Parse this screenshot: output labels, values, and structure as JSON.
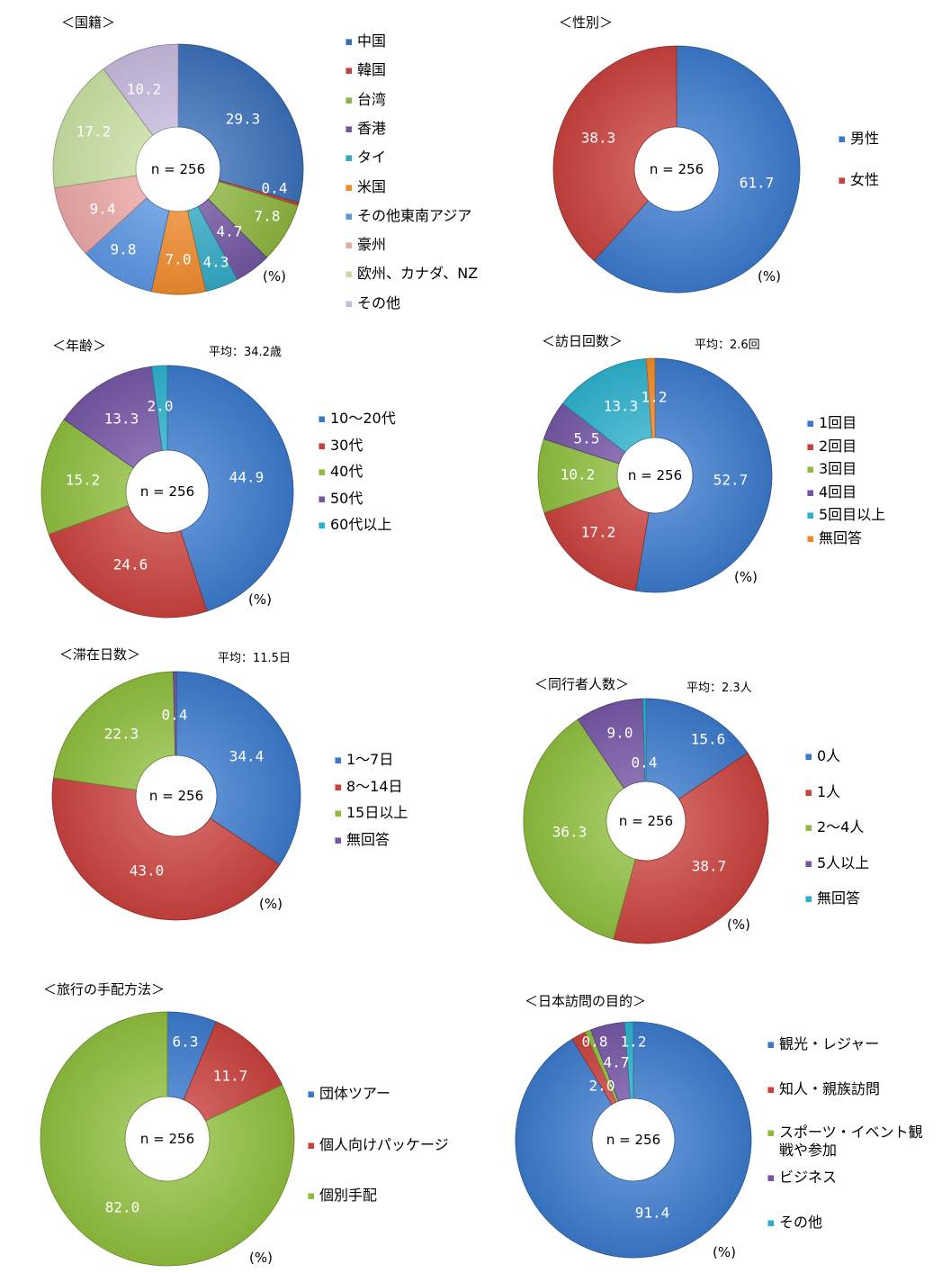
{
  "percent_unit": "(%)",
  "chart_data": [
    {
      "type": "pie",
      "title": "＜国籍＞",
      "subtitle": "",
      "center_label": "n = 256",
      "categories": [
        "中国",
        "韓国",
        "台湾",
        "香港",
        "タイ",
        "米国",
        "その他東南アジア",
        "豪州",
        "欧州、カナダ、NZ",
        "その他"
      ],
      "values": [
        29.3,
        0.4,
        7.8,
        4.7,
        4.3,
        7.0,
        9.8,
        9.4,
        17.2,
        10.2
      ],
      "colors": [
        "#3A6FB7",
        "#C0403A",
        "#8CB33F",
        "#7155A0",
        "#33A8C3",
        "#EC8A2D",
        "#5B95E0",
        "#E9A7A5",
        "#C8DEA1",
        "#C6B8DC"
      ],
      "unit": "(%)"
    },
    {
      "type": "pie",
      "title": "＜性別＞",
      "subtitle": "",
      "center_label": "n = 256",
      "categories": [
        "男性",
        "女性"
      ],
      "values": [
        61.7,
        38.3
      ],
      "colors": [
        "#3A78C9",
        "#C7413D"
      ],
      "unit": "(%)"
    },
    {
      "type": "pie",
      "title": "＜年齢＞",
      "subtitle": "平均：34.2歳",
      "center_label": "n = 256",
      "categories": [
        "10～20代",
        "30代",
        "40代",
        "50代",
        "60代以上"
      ],
      "values": [
        44.9,
        24.6,
        15.2,
        13.3,
        2.0
      ],
      "colors": [
        "#3A78C9",
        "#C7413D",
        "#8DBC3E",
        "#7456A4",
        "#2EAFCB"
      ],
      "unit": "(%)"
    },
    {
      "type": "pie",
      "title": "＜訪日回数＞",
      "subtitle": "平均：2.6回",
      "center_label": "n = 256",
      "categories": [
        "1回目",
        "2回目",
        "3回目",
        "4回目",
        "5回目以上",
        "無回答"
      ],
      "values": [
        52.7,
        17.2,
        10.2,
        5.5,
        13.3,
        1.2
      ],
      "colors": [
        "#3A78C9",
        "#C7413D",
        "#8DBC3E",
        "#7456A4",
        "#2EAFCB",
        "#EE8A2A"
      ],
      "unit": "(%)"
    },
    {
      "type": "pie",
      "title": "＜滞在日数＞",
      "subtitle": "平均：11.5日",
      "center_label": "n = 256",
      "categories": [
        "1～7日",
        "8～14日",
        "15日以上",
        "無回答"
      ],
      "values": [
        34.4,
        43.0,
        22.3,
        0.4
      ],
      "colors": [
        "#3A78C9",
        "#C7413D",
        "#8DBC3E",
        "#7456A4"
      ],
      "unit": "(%)"
    },
    {
      "type": "pie",
      "title": "＜同行者人数＞",
      "subtitle": "平均：2.3人",
      "center_label": "n = 256",
      "categories": [
        "0人",
        "1人",
        "2～4人",
        "5人以上",
        "無回答"
      ],
      "values": [
        15.6,
        38.7,
        36.3,
        9.0,
        0.4
      ],
      "colors": [
        "#3A78C9",
        "#C7413D",
        "#8DBC3E",
        "#7456A4",
        "#2EAFCB"
      ],
      "unit": "(%)"
    },
    {
      "type": "pie",
      "title": "＜旅行の手配方法＞",
      "subtitle": "",
      "center_label": "n = 256",
      "categories": [
        "団体ツアー",
        "個人向けパッケージ",
        "個別手配"
      ],
      "values": [
        6.3,
        11.7,
        82.0
      ],
      "colors": [
        "#3A78C9",
        "#C7413D",
        "#8DBC3E"
      ],
      "unit": "(%)"
    },
    {
      "type": "pie",
      "title": "＜日本訪問の目的＞",
      "subtitle": "",
      "center_label": "n = 256",
      "categories": [
        "観光・レジャー",
        "知人・親族訪問",
        "スポーツ・イベント観戦や参加",
        "ビジネス",
        "その他"
      ],
      "values": [
        91.4,
        2.0,
        0.8,
        4.7,
        1.2
      ],
      "colors": [
        "#3A78C9",
        "#C7413D",
        "#8DBC3E",
        "#7456A4",
        "#2EAFCB"
      ],
      "unit": "(%)"
    }
  ]
}
